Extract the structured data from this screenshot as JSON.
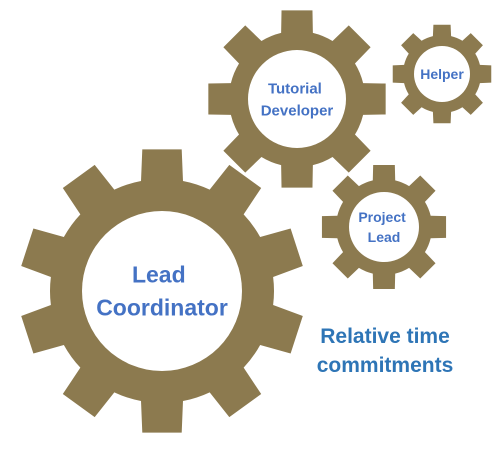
{
  "colors": {
    "gear": "#8c7a4f",
    "gear_label": "#4472c4",
    "caption": "#2e75b6",
    "background": "#ffffff"
  },
  "gears": [
    {
      "id": "lead-coordinator",
      "lines": [
        "Lead",
        "Coordinator"
      ]
    },
    {
      "id": "tutorial-developer",
      "lines": [
        "Tutorial",
        "Developer"
      ]
    },
    {
      "id": "helper",
      "lines": [
        "Helper"
      ]
    },
    {
      "id": "project-lead",
      "lines": [
        "Project",
        "Lead"
      ]
    }
  ],
  "caption": {
    "line1": "Relative time",
    "line2": "commitments"
  }
}
